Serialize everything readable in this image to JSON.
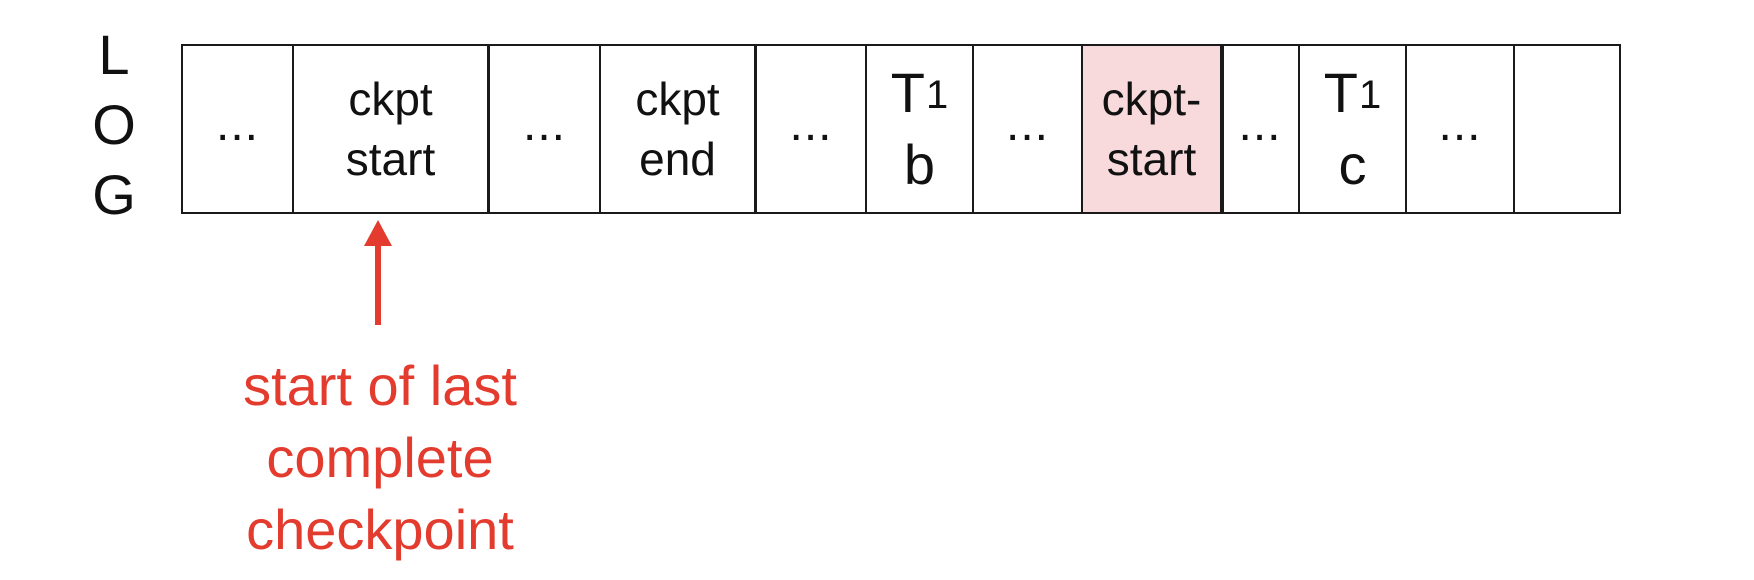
{
  "log_label": [
    "L",
    "O",
    "G"
  ],
  "log_cells": [
    {
      "type": "dots",
      "text": "..."
    },
    {
      "type": "text",
      "lines": [
        "ckpt",
        "start"
      ]
    },
    {
      "type": "dots",
      "text": "..."
    },
    {
      "type": "text",
      "lines": [
        "ckpt",
        "end"
      ]
    },
    {
      "type": "dots",
      "text": "..."
    },
    {
      "type": "txn",
      "txn": "T",
      "sub": "1",
      "item": "b"
    },
    {
      "type": "dots",
      "text": "..."
    },
    {
      "type": "text",
      "lines": [
        "ckpt-",
        "start"
      ],
      "highlighted": true
    },
    {
      "type": "dots",
      "text": "..."
    },
    {
      "type": "txn",
      "txn": "T",
      "sub": "1",
      "item": "c"
    },
    {
      "type": "dots",
      "text": "..."
    },
    {
      "type": "empty"
    }
  ],
  "annotation": {
    "lines": [
      "start of last",
      "complete",
      "checkpoint"
    ],
    "color": "#e33b2e"
  },
  "colors": {
    "highlight_fill": "#f8dadc",
    "border": "#1a1a1a",
    "arrow": "#e33b2e"
  }
}
